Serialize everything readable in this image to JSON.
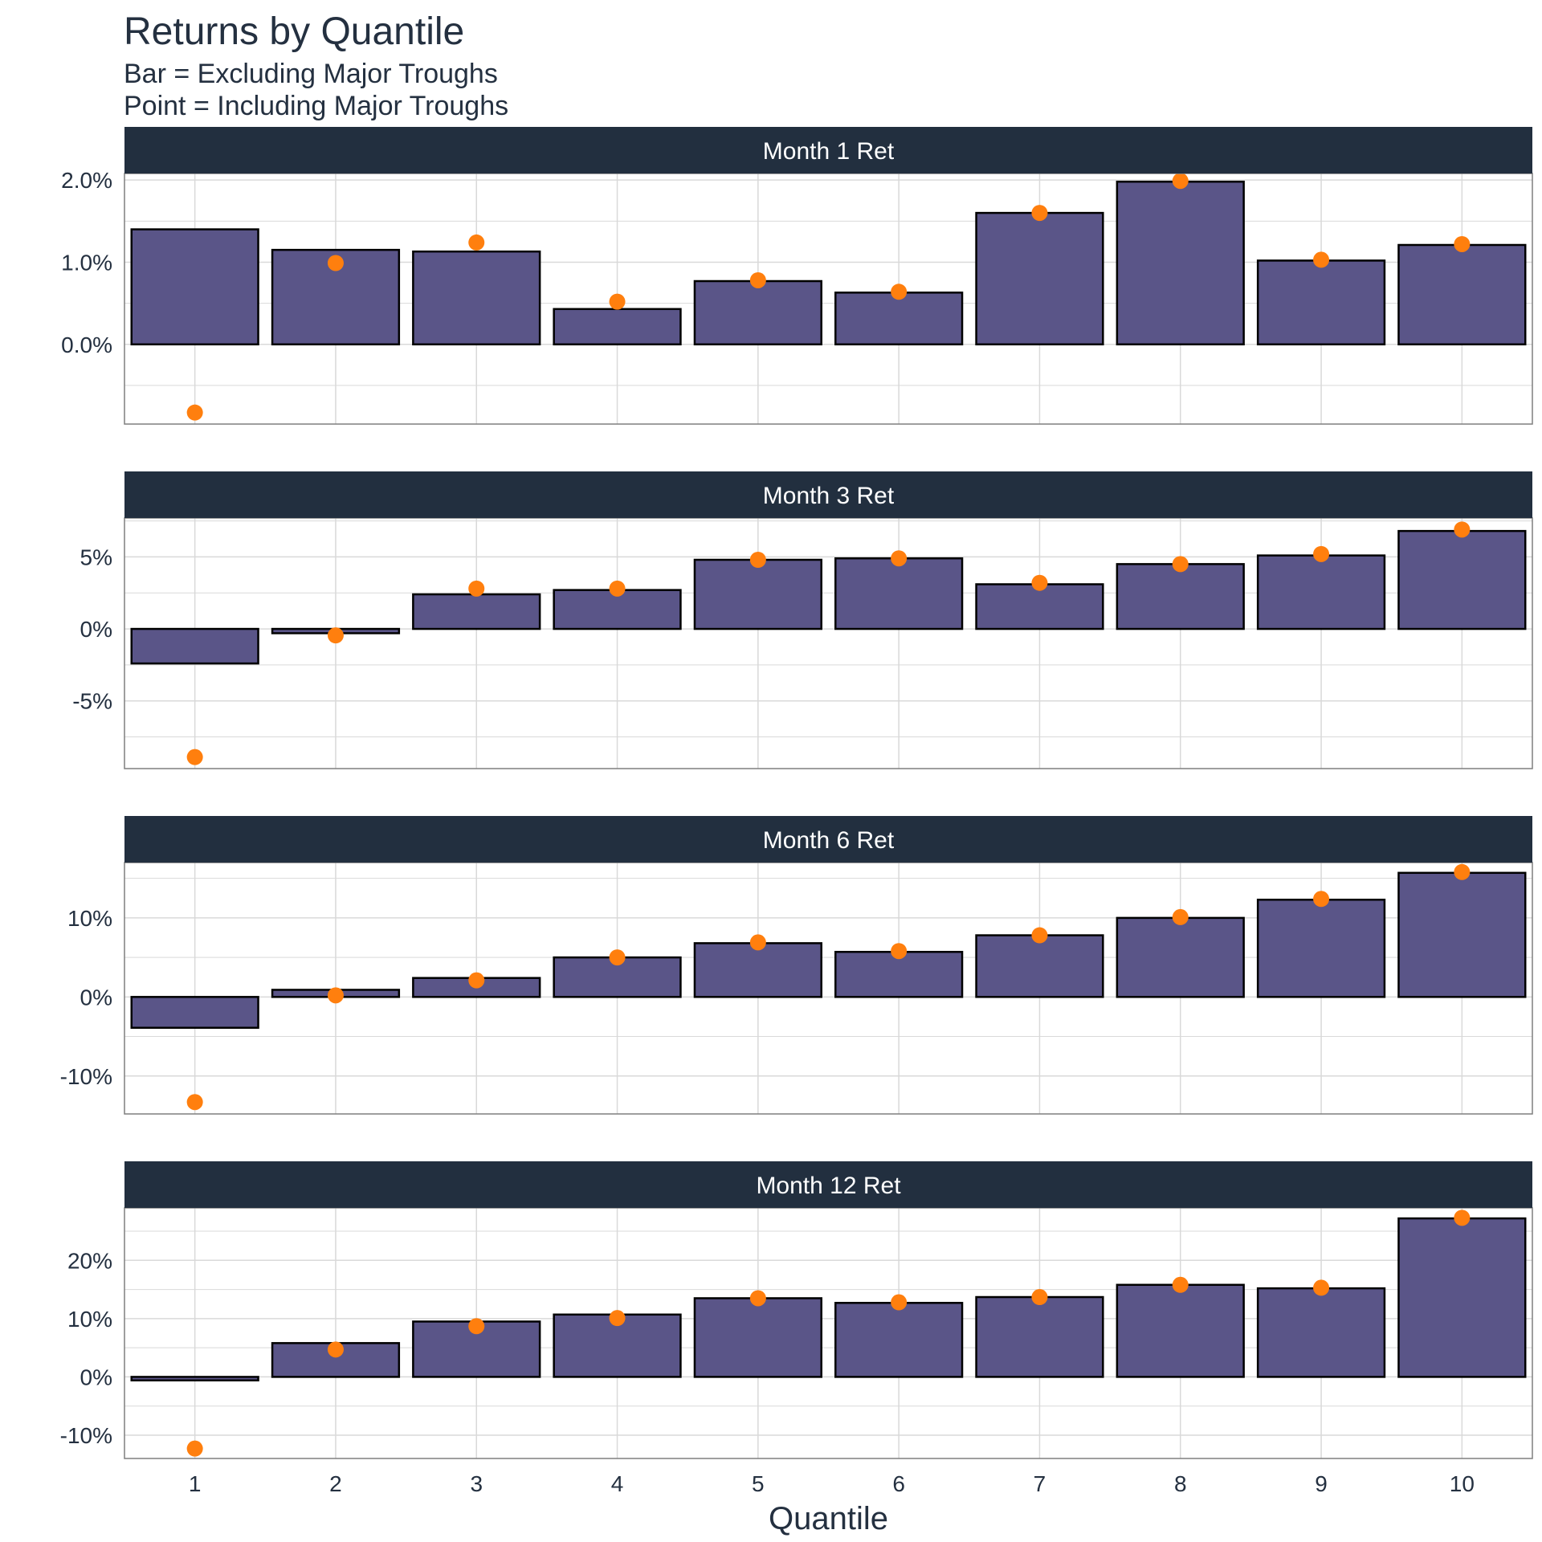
{
  "title": "Returns by Quantile",
  "subtitle_lines": [
    "Bar = Excluding Major Troughs",
    "Point = Including Major Troughs"
  ],
  "colors": {
    "bar_fill": "#5a5588",
    "bar_stroke": "#000000",
    "point": "#ff7f0e",
    "strip_bg": "#222f3f",
    "strip_text": "#ffffff",
    "grid": "#d9d9d9",
    "text": "#243040"
  },
  "chart_data": {
    "type": "bar",
    "xlabel": "Quantile",
    "categories": [
      "1",
      "2",
      "3",
      "4",
      "5",
      "6",
      "7",
      "8",
      "9",
      "10"
    ],
    "legend": "none",
    "grid": true,
    "panels": [
      {
        "label": "Month 1 Ret",
        "ylim": [
          -0.0097,
          0.0208
        ],
        "yticks": [
          0.0,
          0.01,
          0.02
        ],
        "ytick_labels": [
          "0.0%",
          "1.0%",
          "2.0%"
        ],
        "bars": [
          0.014,
          0.0115,
          0.0113,
          0.0043,
          0.0077,
          0.0063,
          0.016,
          0.0198,
          0.0102,
          0.0121
        ],
        "points": [
          -0.0083,
          0.0099,
          0.0124,
          0.0052,
          0.0078,
          0.0064,
          0.016,
          0.0199,
          0.0103,
          0.0122
        ]
      },
      {
        "label": "Month 3 Ret",
        "ylim": [
          -0.097,
          0.077
        ],
        "yticks": [
          -0.05,
          0.0,
          0.05
        ],
        "ytick_labels": [
          "-5%",
          "0%",
          "5%"
        ],
        "bars": [
          -0.024,
          -0.003,
          0.024,
          0.027,
          0.048,
          0.049,
          0.031,
          0.045,
          0.051,
          0.068
        ],
        "points": [
          -0.089,
          -0.0045,
          0.028,
          0.028,
          0.048,
          0.049,
          0.032,
          0.045,
          0.052,
          0.069
        ]
      },
      {
        "label": "Month 6 Ret",
        "ylim": [
          -0.148,
          0.17
        ],
        "yticks": [
          -0.1,
          0.0,
          0.1
        ],
        "ytick_labels": [
          "-10%",
          "0%",
          "10%"
        ],
        "bars": [
          -0.039,
          0.009,
          0.024,
          0.05,
          0.068,
          0.057,
          0.078,
          0.1,
          0.123,
          0.157
        ],
        "points": [
          -0.133,
          0.002,
          0.021,
          0.05,
          0.069,
          0.058,
          0.078,
          0.101,
          0.124,
          0.158
        ]
      },
      {
        "label": "Month 12 Ret",
        "ylim": [
          -0.14,
          0.29
        ],
        "yticks": [
          -0.1,
          0.0,
          0.1,
          0.2
        ],
        "ytick_labels": [
          "-10%",
          "0%",
          "10%",
          "20%"
        ],
        "bars": [
          -0.006,
          0.058,
          0.095,
          0.107,
          0.135,
          0.127,
          0.137,
          0.158,
          0.152,
          0.272
        ],
        "points": [
          -0.123,
          0.047,
          0.087,
          0.101,
          0.135,
          0.128,
          0.137,
          0.158,
          0.153,
          0.273
        ]
      }
    ]
  }
}
